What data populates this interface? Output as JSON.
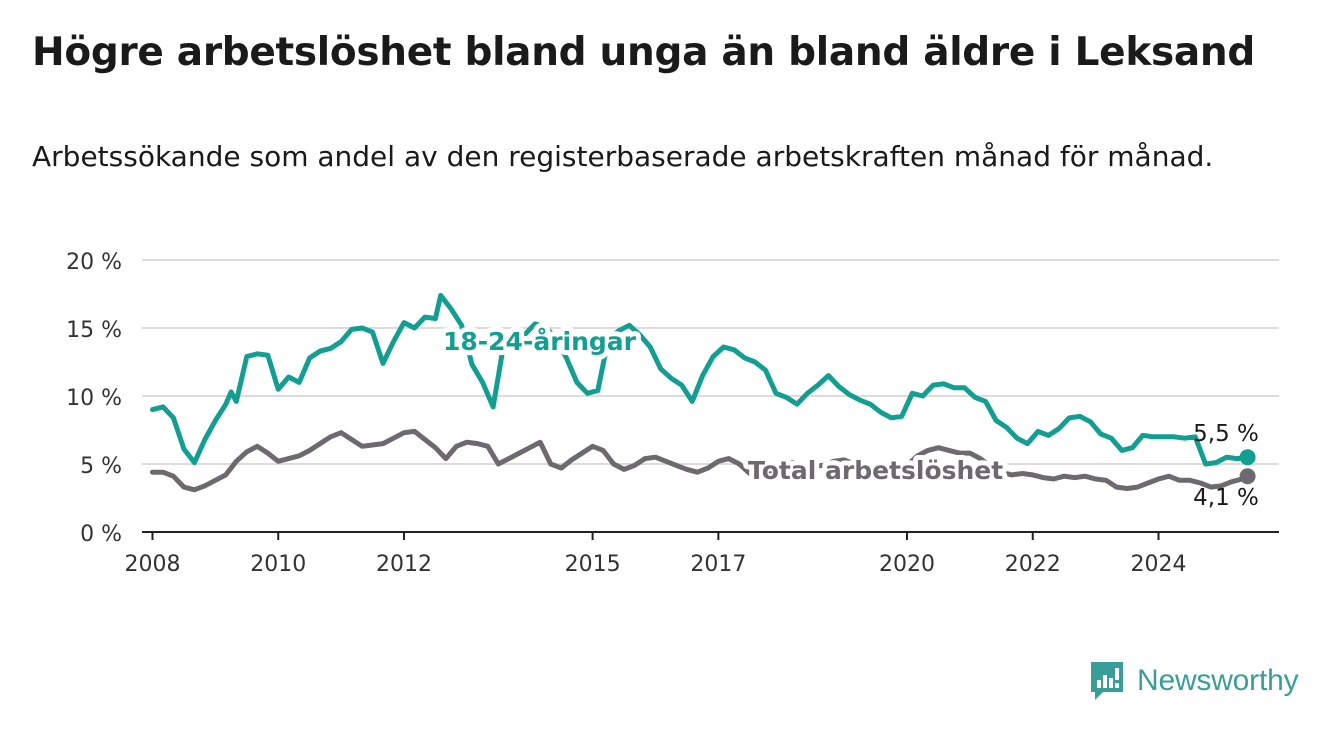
{
  "title": "Högre arbetslöshet bland unga än bland äldre i Leksand",
  "subtitle": "Arbetssökande som andel av den registerbaserade arbetskraften månad för månad.",
  "logo": {
    "text": "Newsworthy",
    "color": "#3a9e98"
  },
  "chart_data": {
    "type": "line",
    "ylim": [
      0,
      20
    ],
    "y_ticks": [
      0,
      5,
      10,
      15,
      20
    ],
    "y_tick_labels": [
      "0 %",
      "5 %",
      "10 %",
      "15 %",
      "20 %"
    ],
    "x_range": [
      "2007-11",
      "2025-12"
    ],
    "x_ticks": [
      "2008-01",
      "2010-01",
      "2012-01",
      "2015-01",
      "2017-01",
      "2020-01",
      "2022-01",
      "2024-01"
    ],
    "x_tick_labels": [
      "2008",
      "2010",
      "2012",
      "2015",
      "2017",
      "2020",
      "2022",
      "2024"
    ],
    "grid": true,
    "series": [
      {
        "name": "18-24-åringar",
        "color": "#139e92",
        "end_label": "5,5 %",
        "points": [
          [
            "2008-01",
            9.0
          ],
          [
            "2008-03",
            9.2
          ],
          [
            "2008-05",
            8.4
          ],
          [
            "2008-07",
            6.1
          ],
          [
            "2008-09",
            5.1
          ],
          [
            "2008-11",
            6.8
          ],
          [
            "2009-01",
            8.2
          ],
          [
            "2009-03",
            9.4
          ],
          [
            "2009-04",
            10.3
          ],
          [
            "2009-05",
            9.6
          ],
          [
            "2009-07",
            12.9
          ],
          [
            "2009-09",
            13.1
          ],
          [
            "2009-11",
            13.0
          ],
          [
            "2010-01",
            10.5
          ],
          [
            "2010-03",
            11.4
          ],
          [
            "2010-05",
            11.0
          ],
          [
            "2010-07",
            12.8
          ],
          [
            "2010-09",
            13.3
          ],
          [
            "2010-11",
            13.5
          ],
          [
            "2011-01",
            14.0
          ],
          [
            "2011-03",
            14.9
          ],
          [
            "2011-05",
            15.0
          ],
          [
            "2011-07",
            14.7
          ],
          [
            "2011-09",
            12.4
          ],
          [
            "2011-11",
            14.0
          ],
          [
            "2012-01",
            15.4
          ],
          [
            "2012-03",
            15.0
          ],
          [
            "2012-05",
            15.8
          ],
          [
            "2012-07",
            15.7
          ],
          [
            "2012-08",
            17.4
          ],
          [
            "2012-10",
            16.4
          ],
          [
            "2012-12",
            15.2
          ],
          [
            "2013-02",
            12.3
          ],
          [
            "2013-04",
            11.0
          ],
          [
            "2013-06",
            9.2
          ],
          [
            "2013-08",
            13.7
          ],
          [
            "2013-10",
            13.6
          ],
          [
            "2013-12",
            14.5
          ],
          [
            "2014-02",
            15.3
          ],
          [
            "2014-04",
            15.1
          ],
          [
            "2014-06",
            14.2
          ],
          [
            "2014-08",
            12.8
          ],
          [
            "2014-10",
            11.0
          ],
          [
            "2014-12",
            10.2
          ],
          [
            "2015-02",
            10.4
          ],
          [
            "2015-04",
            14.2
          ],
          [
            "2015-06",
            14.8
          ],
          [
            "2015-08",
            15.2
          ],
          [
            "2015-10",
            14.5
          ],
          [
            "2015-12",
            13.6
          ],
          [
            "2016-02",
            12.0
          ],
          [
            "2016-04",
            11.3
          ],
          [
            "2016-06",
            10.8
          ],
          [
            "2016-08",
            9.6
          ],
          [
            "2016-10",
            11.5
          ],
          [
            "2016-12",
            12.9
          ],
          [
            "2017-02",
            13.6
          ],
          [
            "2017-04",
            13.4
          ],
          [
            "2017-06",
            12.8
          ],
          [
            "2017-08",
            12.5
          ],
          [
            "2017-10",
            11.9
          ],
          [
            "2017-12",
            10.2
          ],
          [
            "2018-02",
            9.9
          ],
          [
            "2018-04",
            9.4
          ],
          [
            "2018-06",
            10.2
          ],
          [
            "2018-08",
            10.8
          ],
          [
            "2018-10",
            11.5
          ],
          [
            "2018-12",
            10.7
          ],
          [
            "2019-02",
            10.1
          ],
          [
            "2019-04",
            9.7
          ],
          [
            "2019-06",
            9.4
          ],
          [
            "2019-08",
            8.8
          ],
          [
            "2019-10",
            8.4
          ],
          [
            "2019-12",
            8.5
          ],
          [
            "2020-02",
            10.2
          ],
          [
            "2020-04",
            10.0
          ],
          [
            "2020-06",
            10.8
          ],
          [
            "2020-08",
            10.9
          ],
          [
            "2020-10",
            10.6
          ],
          [
            "2020-12",
            10.6
          ],
          [
            "2021-02",
            9.9
          ],
          [
            "2021-04",
            9.6
          ],
          [
            "2021-06",
            8.2
          ],
          [
            "2021-08",
            7.7
          ],
          [
            "2021-10",
            6.9
          ],
          [
            "2021-12",
            6.5
          ],
          [
            "2022-02",
            7.4
          ],
          [
            "2022-04",
            7.1
          ],
          [
            "2022-06",
            7.6
          ],
          [
            "2022-08",
            8.4
          ],
          [
            "2022-10",
            8.5
          ],
          [
            "2022-12",
            8.1
          ],
          [
            "2023-02",
            7.2
          ],
          [
            "2023-04",
            6.9
          ],
          [
            "2023-06",
            6.0
          ],
          [
            "2023-08",
            6.2
          ],
          [
            "2023-10",
            7.1
          ],
          [
            "2023-12",
            7.0
          ],
          [
            "2024-02",
            7.0
          ],
          [
            "2024-04",
            7.0
          ],
          [
            "2024-06",
            6.9
          ],
          [
            "2024-08",
            7.0
          ],
          [
            "2024-10",
            5.0
          ],
          [
            "2024-12",
            5.1
          ],
          [
            "2025-02",
            5.5
          ],
          [
            "2025-04",
            5.4
          ],
          [
            "2025-06",
            5.5
          ]
        ]
      },
      {
        "name": "Total arbetslöshet",
        "color": "#6d6a6f",
        "end_label": "4,1 %",
        "points": [
          [
            "2008-01",
            4.4
          ],
          [
            "2008-03",
            4.4
          ],
          [
            "2008-05",
            4.1
          ],
          [
            "2008-07",
            3.3
          ],
          [
            "2008-09",
            3.1
          ],
          [
            "2008-11",
            3.4
          ],
          [
            "2009-01",
            3.8
          ],
          [
            "2009-03",
            4.2
          ],
          [
            "2009-05",
            5.2
          ],
          [
            "2009-07",
            5.9
          ],
          [
            "2009-09",
            6.3
          ],
          [
            "2009-11",
            5.8
          ],
          [
            "2010-01",
            5.2
          ],
          [
            "2010-03",
            5.4
          ],
          [
            "2010-05",
            5.6
          ],
          [
            "2010-07",
            6.0
          ],
          [
            "2010-09",
            6.5
          ],
          [
            "2010-11",
            7.0
          ],
          [
            "2011-01",
            7.3
          ],
          [
            "2011-03",
            6.8
          ],
          [
            "2011-05",
            6.3
          ],
          [
            "2011-07",
            6.4
          ],
          [
            "2011-09",
            6.5
          ],
          [
            "2011-11",
            6.9
          ],
          [
            "2012-01",
            7.3
          ],
          [
            "2012-03",
            7.4
          ],
          [
            "2012-05",
            6.8
          ],
          [
            "2012-07",
            6.2
          ],
          [
            "2012-09",
            5.4
          ],
          [
            "2012-11",
            6.3
          ],
          [
            "2013-01",
            6.6
          ],
          [
            "2013-03",
            6.5
          ],
          [
            "2013-05",
            6.3
          ],
          [
            "2013-07",
            5.0
          ],
          [
            "2013-09",
            5.4
          ],
          [
            "2013-11",
            5.8
          ],
          [
            "2014-01",
            6.2
          ],
          [
            "2014-03",
            6.6
          ],
          [
            "2014-05",
            5.0
          ],
          [
            "2014-07",
            4.7
          ],
          [
            "2014-09",
            5.3
          ],
          [
            "2014-11",
            5.8
          ],
          [
            "2015-01",
            6.3
          ],
          [
            "2015-03",
            6.0
          ],
          [
            "2015-05",
            5.0
          ],
          [
            "2015-07",
            4.6
          ],
          [
            "2015-09",
            4.9
          ],
          [
            "2015-11",
            5.4
          ],
          [
            "2016-01",
            5.5
          ],
          [
            "2016-03",
            5.2
          ],
          [
            "2016-05",
            4.9
          ],
          [
            "2016-07",
            4.6
          ],
          [
            "2016-09",
            4.4
          ],
          [
            "2016-11",
            4.7
          ],
          [
            "2017-01",
            5.2
          ],
          [
            "2017-03",
            5.4
          ],
          [
            "2017-05",
            5.0
          ],
          [
            "2017-07",
            4.3
          ],
          [
            "2017-09",
            4.2
          ],
          [
            "2017-11",
            4.4
          ],
          [
            "2018-01",
            4.8
          ],
          [
            "2018-03",
            5.1
          ],
          [
            "2018-05",
            4.9
          ],
          [
            "2018-07",
            4.8
          ],
          [
            "2018-09",
            4.9
          ],
          [
            "2018-11",
            5.2
          ],
          [
            "2019-01",
            5.3
          ],
          [
            "2019-03",
            5.0
          ],
          [
            "2019-05",
            4.7
          ],
          [
            "2019-07",
            4.5
          ],
          [
            "2019-09",
            4.6
          ],
          [
            "2019-11",
            4.7
          ],
          [
            "2020-01",
            4.9
          ],
          [
            "2020-03",
            5.6
          ],
          [
            "2020-05",
            6.0
          ],
          [
            "2020-07",
            6.2
          ],
          [
            "2020-09",
            6.0
          ],
          [
            "2020-11",
            5.8
          ],
          [
            "2021-01",
            5.8
          ],
          [
            "2021-03",
            5.4
          ],
          [
            "2021-05",
            4.8
          ],
          [
            "2021-07",
            4.4
          ],
          [
            "2021-09",
            4.2
          ],
          [
            "2021-11",
            4.3
          ],
          [
            "2022-01",
            4.2
          ],
          [
            "2022-03",
            4.0
          ],
          [
            "2022-05",
            3.9
          ],
          [
            "2022-07",
            4.1
          ],
          [
            "2022-09",
            4.0
          ],
          [
            "2022-11",
            4.1
          ],
          [
            "2023-01",
            3.9
          ],
          [
            "2023-03",
            3.8
          ],
          [
            "2023-05",
            3.3
          ],
          [
            "2023-07",
            3.2
          ],
          [
            "2023-09",
            3.3
          ],
          [
            "2023-11",
            3.6
          ],
          [
            "2024-01",
            3.9
          ],
          [
            "2024-03",
            4.1
          ],
          [
            "2024-05",
            3.8
          ],
          [
            "2024-07",
            3.8
          ],
          [
            "2024-09",
            3.6
          ],
          [
            "2024-11",
            3.3
          ],
          [
            "2025-01",
            3.4
          ],
          [
            "2025-03",
            3.7
          ],
          [
            "2025-05",
            3.9
          ],
          [
            "2025-06",
            4.1
          ]
        ]
      }
    ]
  }
}
